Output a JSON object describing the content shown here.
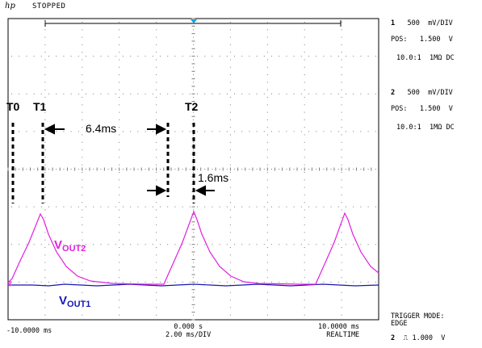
{
  "header": {
    "logo": "hp",
    "status": "STOPPED"
  },
  "channels": [
    {
      "number": "1",
      "scale": "500",
      "unit": "mV/DIV",
      "pos_label": "POS:",
      "pos_value": "1.500",
      "pos_unit": "V",
      "probe": "10.0:1",
      "coupling": "1MΩ DC"
    },
    {
      "number": "2",
      "scale": "500",
      "unit": "mV/DIV",
      "pos_label": "POS:",
      "pos_value": "1.500",
      "pos_unit": "V",
      "probe": "10.0:1",
      "coupling": "1MΩ DC"
    }
  ],
  "trigger": {
    "mode_label": "TRIGGER MODE:",
    "mode": "EDGE",
    "channel": "2",
    "level": "1.000",
    "unit": "V"
  },
  "timebase": {
    "left": "-10.0000 ms",
    "center": "0.000",
    "center_unit": "s",
    "scale": "2.00 ms/DIV",
    "right": "10.0000 ms",
    "mode": "REALTIME"
  },
  "markers": {
    "t0": "T0",
    "t1": "T1",
    "t2": "T2"
  },
  "annotations": {
    "interval_1": "6.4ms",
    "interval_2": "1.6ms"
  },
  "traces": {
    "vout2": {
      "main": "V",
      "sub": "OUT2",
      "color": "#e020e0"
    },
    "vout1": {
      "main": "V",
      "sub": "OUT1",
      "color": "#1818b0"
    }
  },
  "colors": {
    "grid": "#7a7a7a",
    "trigger": "#00a8e8"
  }
}
